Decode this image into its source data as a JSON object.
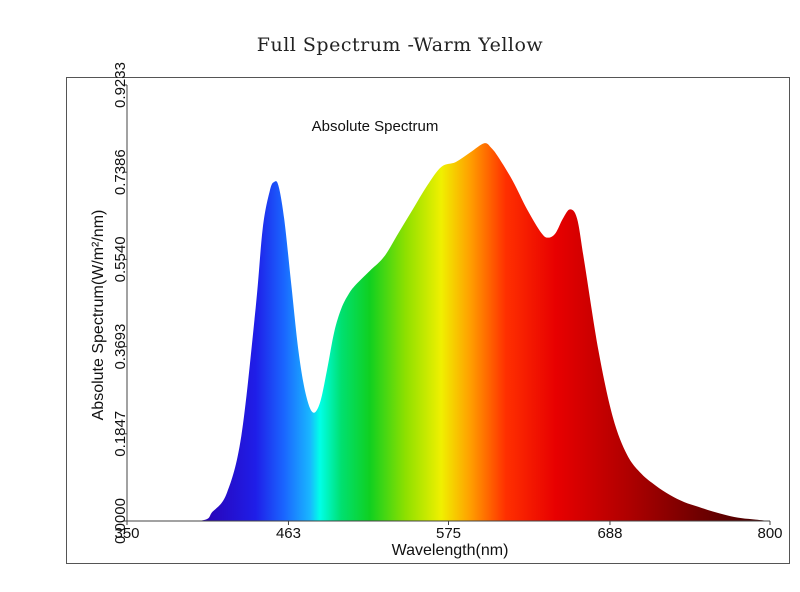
{
  "page": {
    "title": "Full Spectrum -Warm Yellow"
  },
  "chart_data": {
    "type": "area",
    "title": "Absolute Spectrum",
    "xlabel": "Wavelength(nm)",
    "ylabel": "Absolute Spectrum(W/m²/nm)",
    "xlim": [
      350,
      800
    ],
    "ylim": [
      0,
      0.9233
    ],
    "x_ticks": [
      "350",
      "463",
      "575",
      "688",
      "800"
    ],
    "y_ticks": [
      "0.0000",
      "0.1847",
      "0.3693",
      "0.5540",
      "0.7386",
      "0.9233"
    ],
    "grid": false,
    "legend": "none",
    "fill": "spectral rainbow gradient by wavelength",
    "series": [
      {
        "x": [
          350,
          400,
          410,
          420,
          430,
          440,
          445,
          450,
          453,
          456,
          460,
          465,
          470,
          475,
          480,
          485,
          490,
          495,
          500,
          505,
          510,
          520,
          530,
          540,
          550,
          560,
          570,
          580,
          590,
          600,
          605,
          610,
          620,
          630,
          640,
          645,
          650,
          655,
          660,
          665,
          670,
          680,
          690,
          700,
          710,
          720,
          730,
          740,
          750,
          760,
          770,
          780,
          790,
          800
        ],
        "values": [
          0,
          0,
          0.02,
          0.06,
          0.18,
          0.45,
          0.62,
          0.7,
          0.718,
          0.71,
          0.64,
          0.5,
          0.36,
          0.27,
          0.23,
          0.25,
          0.32,
          0.4,
          0.45,
          0.48,
          0.5,
          0.53,
          0.56,
          0.61,
          0.66,
          0.71,
          0.75,
          0.76,
          0.78,
          0.8,
          0.79,
          0.77,
          0.72,
          0.66,
          0.61,
          0.6,
          0.61,
          0.64,
          0.66,
          0.64,
          0.55,
          0.36,
          0.22,
          0.14,
          0.1,
          0.075,
          0.055,
          0.04,
          0.03,
          0.02,
          0.012,
          0.006,
          0.003,
          0
        ]
      }
    ],
    "colors": {
      "stops": [
        {
          "nm": 400,
          "color": "#2a00b0"
        },
        {
          "nm": 440,
          "color": "#1f1ee8"
        },
        {
          "nm": 460,
          "color": "#1a66ff"
        },
        {
          "nm": 478,
          "color": "#19b6ff"
        },
        {
          "nm": 485,
          "color": "#00ffe8"
        },
        {
          "nm": 500,
          "color": "#00e070"
        },
        {
          "nm": 520,
          "color": "#10d020"
        },
        {
          "nm": 545,
          "color": "#8ee000"
        },
        {
          "nm": 570,
          "color": "#f0f000"
        },
        {
          "nm": 590,
          "color": "#ffa000"
        },
        {
          "nm": 615,
          "color": "#ff3000"
        },
        {
          "nm": 650,
          "color": "#e80000"
        },
        {
          "nm": 700,
          "color": "#b00000"
        },
        {
          "nm": 750,
          "color": "#700000"
        },
        {
          "nm": 800,
          "color": "#400000"
        }
      ]
    }
  }
}
